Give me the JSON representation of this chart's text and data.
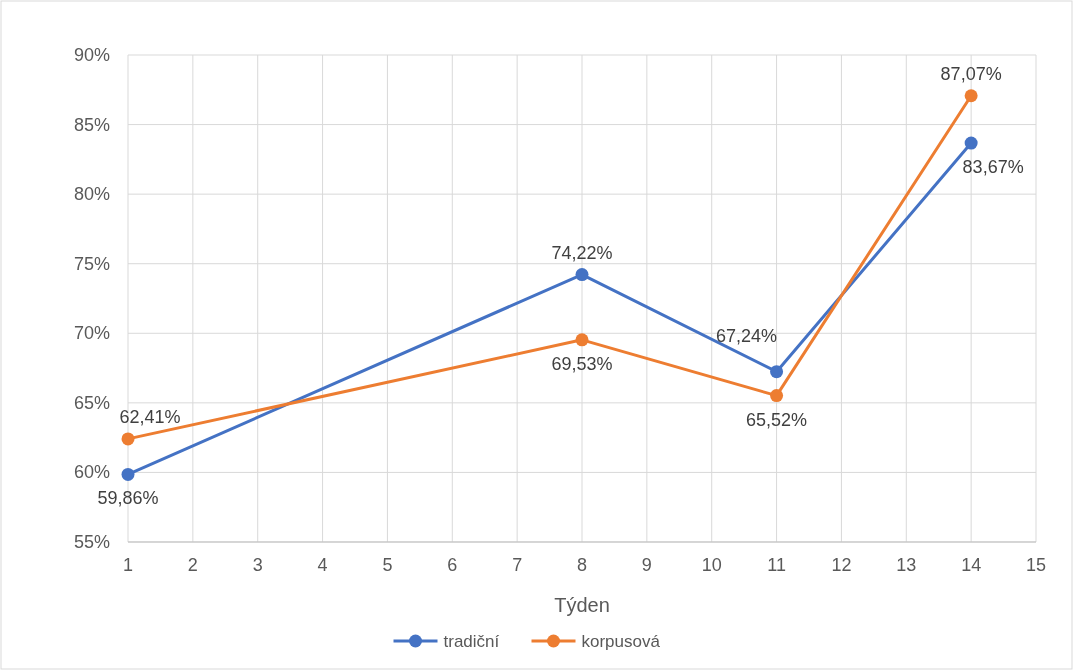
{
  "chart_data": {
    "type": "line",
    "xlabel": "Týden",
    "x": [
      1,
      8,
      11,
      14
    ],
    "xlim": [
      1,
      15
    ],
    "xticks": [
      1,
      2,
      3,
      4,
      5,
      6,
      7,
      8,
      9,
      10,
      11,
      12,
      13,
      14,
      15
    ],
    "ylim": [
      55,
      90
    ],
    "yticks": [
      {
        "value": 55,
        "label": "55%"
      },
      {
        "value": 60,
        "label": "60%"
      },
      {
        "value": 65,
        "label": "65%"
      },
      {
        "value": 70,
        "label": "70%"
      },
      {
        "value": 75,
        "label": "75%"
      },
      {
        "value": 80,
        "label": "80%"
      },
      {
        "value": 85,
        "label": "85%"
      },
      {
        "value": 90,
        "label": "90%"
      }
    ],
    "grid": true,
    "legend": "bottom",
    "marker": "circle",
    "line_style": "solid",
    "series": [
      {
        "name": "tradiční",
        "color": "#4472c4",
        "values": [
          59.86,
          74.22,
          67.24,
          83.67
        ],
        "value_labels": [
          "59,86%",
          "74,22%",
          "67,24%",
          "83,67%"
        ]
      },
      {
        "name": "korpusová",
        "color": "#ed7d31",
        "values": [
          62.41,
          69.53,
          65.52,
          87.07
        ],
        "value_labels": [
          "62,41%",
          "69,53%",
          "65,52%",
          "87,07%"
        ]
      }
    ]
  }
}
